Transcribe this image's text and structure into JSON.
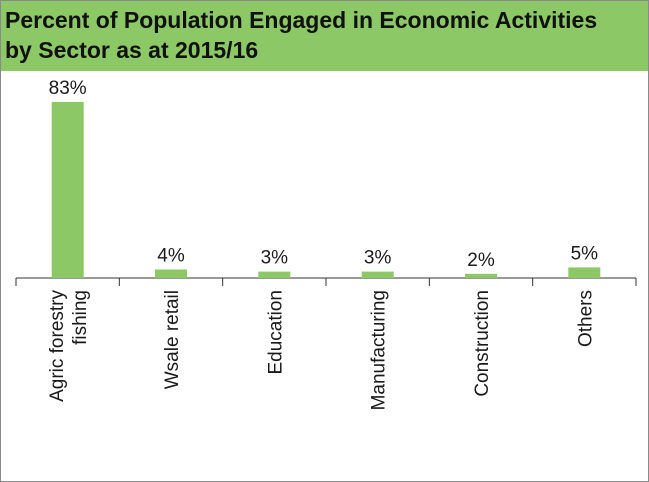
{
  "chart_data": {
    "type": "bar",
    "title": "Percent of Population Engaged in Economic Activities by Sector as at 2015/16",
    "categories": [
      "Agric forestry fishing",
      "Wsale retail",
      "Education",
      "Manufacturing",
      "Construction",
      "Others"
    ],
    "category_lines": [
      [
        "Agric forestry",
        "fishing"
      ],
      [
        "Wsale retail"
      ],
      [
        "Education"
      ],
      [
        "Manufacturing"
      ],
      [
        "Construction"
      ],
      [
        "Others"
      ]
    ],
    "values": [
      83,
      4,
      3,
      3,
      2,
      5
    ],
    "data_labels": [
      "83%",
      "4%",
      "3%",
      "3%",
      "2%",
      "5%"
    ],
    "ylim": [
      0,
      83
    ],
    "xlabel": "",
    "ylabel": "",
    "grid": false,
    "colors": {
      "bar": "#8cc865",
      "header": "#8cc865"
    }
  }
}
